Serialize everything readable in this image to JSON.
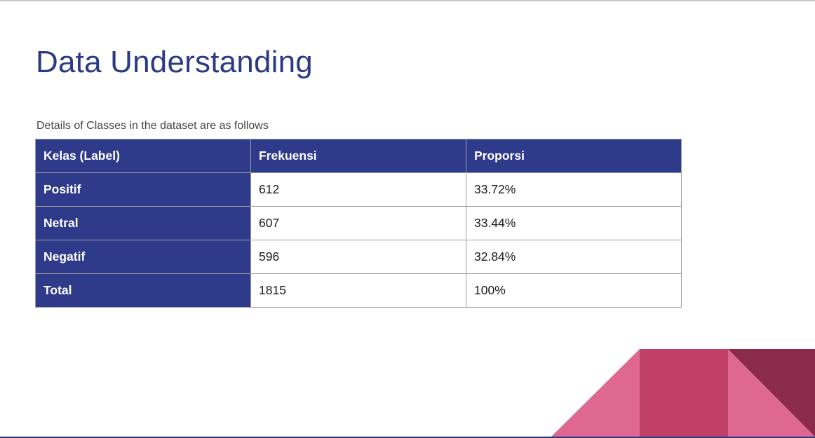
{
  "slide": {
    "title": "Data Understanding",
    "subtitle": "Details of Classes in the dataset are as follows"
  },
  "table": {
    "headers": [
      "Kelas (Label)",
      "Frekuensi",
      "Proporsi"
    ],
    "rows": [
      {
        "label": "Positif",
        "frekuensi": "612",
        "proporsi": "33.72%"
      },
      {
        "label": "Netral",
        "frekuensi": "607",
        "proporsi": "33.44%"
      },
      {
        "label": "Negatif",
        "frekuensi": "596",
        "proporsi": "32.84%"
      },
      {
        "label": "Total",
        "frekuensi": "1815",
        "proporsi": "100%"
      }
    ]
  },
  "decoration": {
    "colors": {
      "light_pink": "#df6890",
      "mid_pink": "#c04067",
      "dark_maroon": "#8b2b4c",
      "header_blue": "#2e3a8a",
      "title_blue": "#2b3a85"
    }
  }
}
